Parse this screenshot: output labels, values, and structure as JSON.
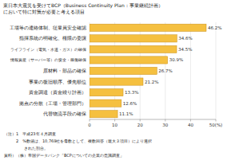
{
  "chart_data": {
    "type": "bar",
    "orientation": "horizontal",
    "title": "東日本大震災を受けてBCP（Business Continuity Plan：事業継続計画）\nにおいて特に対策が必要と考える項目",
    "categories": [
      "工場等の連絡体制、従業員安全確認",
      "指揮系統の明確化、権限の委譲",
      "ライフライン（電気・水道・ガス）の確保",
      "情報資産（サーバー等）の安全・稼働確保",
      "原材料・部品の確保",
      "事業の復旧順序、優先順位",
      "資金調達（資金繰り計画）",
      "拠点の分散（工場・管理部門）",
      "代替物流手段の確保"
    ],
    "values": [
      46.2,
      34.6,
      34.5,
      30.9,
      26.7,
      21.2,
      13.3,
      12.6,
      11.1
    ],
    "value_labels": [
      "46.2%",
      "34.6%",
      "34.5%",
      "30.9%",
      "26.7%",
      "21.2%",
      "13.3%",
      "12.6%",
      "11.1%"
    ],
    "data_labels": true,
    "color": "#f5c040",
    "xlim": [
      0,
      50
    ],
    "xticks": [
      0,
      10,
      20,
      30,
      40,
      {
        "value": 50,
        "label": "50(%)"
      }
    ],
    "grid": true,
    "annotations": [
      "（注）1　平成23年４月調査",
      "　　　2　%数値は、10,769社を母数として、複数回答（最大３項目）により選択",
      "　　　　　された割合。",
      "資料）（株）帝国データバンク「BCPについての企業の意識調査」"
    ]
  }
}
